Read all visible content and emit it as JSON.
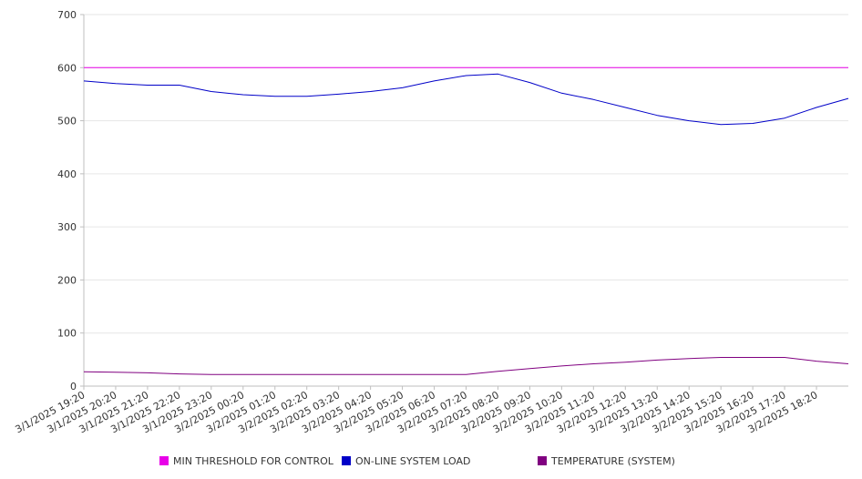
{
  "chart_data": {
    "type": "line",
    "title": "",
    "xlabel": "",
    "ylabel": "",
    "ylim": [
      0,
      700
    ],
    "y_ticks": [
      0,
      100,
      200,
      300,
      400,
      500,
      600,
      700
    ],
    "x_range": [
      "3/1/2025 19:20",
      "3/2/2025 19:20"
    ],
    "x_tick_labels": [
      "3/1/2025 19:20",
      "3/1/2025 20:20",
      "3/1/2025 21:20",
      "3/1/2025 22:20",
      "3/1/2025 23:20",
      "3/2/2025 00:20",
      "3/2/2025 01:20",
      "3/2/2025 02:20",
      "3/2/2025 03:20",
      "3/2/2025 04:20",
      "3/2/2025 05:20",
      "3/2/2025 06:20",
      "3/2/2025 07:20",
      "3/2/2025 08:20",
      "3/2/2025 09:20",
      "3/2/2025 10:20",
      "3/2/2025 11:20",
      "3/2/2025 12:20",
      "3/2/2025 13:20",
      "3/2/2025 14:20",
      "3/2/2025 15:20",
      "3/2/2025 16:20",
      "3/2/2025 17:20",
      "3/2/2025 18:20"
    ],
    "grid": "horizontal",
    "legend_position": "bottom",
    "series": [
      {
        "name": "MIN THRESHOLD FOR CONTROL",
        "color": "#e800e8",
        "x": [
          "3/1/2025 19:20",
          "3/2/2025 19:20"
        ],
        "values": [
          600,
          600
        ]
      },
      {
        "name": "ON-LINE SYSTEM LOAD",
        "color": "#0000c8",
        "x": [
          "3/1/2025 19:20",
          "3/1/2025 20:20",
          "3/1/2025 21:20",
          "3/1/2025 22:20",
          "3/1/2025 23:20",
          "3/2/2025 00:20",
          "3/2/2025 01:20",
          "3/2/2025 02:20",
          "3/2/2025 03:20",
          "3/2/2025 04:20",
          "3/2/2025 05:20",
          "3/2/2025 06:20",
          "3/2/2025 07:20",
          "3/2/2025 08:20",
          "3/2/2025 09:20",
          "3/2/2025 10:20",
          "3/2/2025 11:20",
          "3/2/2025 12:20",
          "3/2/2025 13:20",
          "3/2/2025 14:20",
          "3/2/2025 15:20",
          "3/2/2025 16:20",
          "3/2/2025 17:20",
          "3/2/2025 18:20",
          "3/2/2025 19:20"
        ],
        "values": [
          575,
          570,
          567,
          567,
          555,
          549,
          546,
          546,
          550,
          555,
          562,
          575,
          585,
          588,
          572,
          552,
          540,
          525,
          510,
          500,
          493,
          495,
          505,
          525,
          542
        ]
      },
      {
        "name": "TEMPERATURE (SYSTEM)",
        "color": "#800080",
        "x": [
          "3/1/2025 19:20",
          "3/1/2025 20:20",
          "3/1/2025 21:20",
          "3/1/2025 22:20",
          "3/1/2025 23:20",
          "3/2/2025 00:20",
          "3/2/2025 01:20",
          "3/2/2025 02:20",
          "3/2/2025 03:20",
          "3/2/2025 04:20",
          "3/2/2025 05:20",
          "3/2/2025 06:20",
          "3/2/2025 07:20",
          "3/2/2025 08:20",
          "3/2/2025 09:20",
          "3/2/2025 10:20",
          "3/2/2025 11:20",
          "3/2/2025 12:20",
          "3/2/2025 13:20",
          "3/2/2025 14:20",
          "3/2/2025 15:20",
          "3/2/2025 16:20",
          "3/2/2025 17:20",
          "3/2/2025 18:20",
          "3/2/2025 19:20"
        ],
        "values": [
          27,
          26,
          25,
          23,
          22,
          22,
          22,
          22,
          22,
          22,
          22,
          22,
          22,
          28,
          33,
          38,
          42,
          45,
          49,
          52,
          54,
          54,
          54,
          47,
          42
        ]
      }
    ]
  }
}
